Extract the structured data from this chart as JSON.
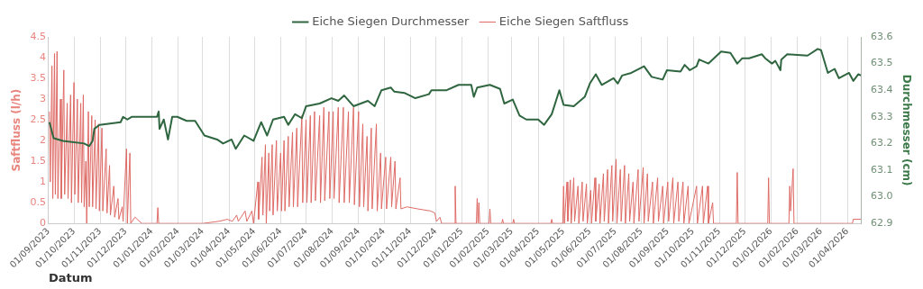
{
  "chart_data": {
    "type": "line",
    "xlabel": "Datum",
    "ylabel": "Saftfluss (l/h)",
    "y2label": "Durchmesser (cm)",
    "legend": "top",
    "grid": "x",
    "marker": "none",
    "xlim": [
      "2023-09-01",
      "2026-04-17"
    ],
    "xticks": [
      {
        "value": "2023-09-01",
        "label": "01/09/2023"
      },
      {
        "value": "2023-10-01",
        "label": "01/10/2023"
      },
      {
        "value": "2023-11-01",
        "label": "01/11/2023"
      },
      {
        "value": "2023-12-01",
        "label": "01/12/2023"
      },
      {
        "value": "2024-01-01",
        "label": "01/01/2024"
      },
      {
        "value": "2024-02-01",
        "label": "01/02/2024"
      },
      {
        "value": "2024-03-01",
        "label": "01/03/2024"
      },
      {
        "value": "2024-04-01",
        "label": "01/04/2024"
      },
      {
        "value": "2024-05-01",
        "label": "01/05/2024"
      },
      {
        "value": "2024-06-01",
        "label": "01/06/2024"
      },
      {
        "value": "2024-07-01",
        "label": "01/07/2024"
      },
      {
        "value": "2024-08-01",
        "label": "01/08/2024"
      },
      {
        "value": "2024-09-01",
        "label": "01/09/2024"
      },
      {
        "value": "2024-10-01",
        "label": "01/10/2024"
      },
      {
        "value": "2024-11-01",
        "label": "01/11/2024"
      },
      {
        "value": "2024-12-01",
        "label": "01/12/2024"
      },
      {
        "value": "2025-01-01",
        "label": "01/01/2025"
      },
      {
        "value": "2025-02-01",
        "label": "01/02/2025"
      },
      {
        "value": "2025-03-01",
        "label": "01/03/2025"
      },
      {
        "value": "2025-04-01",
        "label": "01/04/2025"
      },
      {
        "value": "2025-05-01",
        "label": "01/05/2025"
      },
      {
        "value": "2025-06-01",
        "label": "01/06/2025"
      },
      {
        "value": "2025-07-01",
        "label": "01/07/2025"
      },
      {
        "value": "2025-08-01",
        "label": "01/08/2025"
      },
      {
        "value": "2025-09-01",
        "label": "01/09/2025"
      },
      {
        "value": "2025-10-01",
        "label": "01/10/2025"
      },
      {
        "value": "2025-11-01",
        "label": "01/11/2025"
      },
      {
        "value": "2025-12-01",
        "label": "01/12/2025"
      },
      {
        "value": "2026-01-01",
        "label": "01/01/2026"
      },
      {
        "value": "2026-02-01",
        "label": "01/02/2026"
      },
      {
        "value": "2026-03-01",
        "label": "01/03/2026"
      },
      {
        "value": "2026-04-01",
        "label": "01/04/2026"
      }
    ],
    "ylim": [
      0,
      4.5
    ],
    "yticks": [
      0,
      0.5,
      1,
      1.5,
      2,
      2.5,
      3,
      3.5,
      4,
      4.5
    ],
    "y2lim": [
      62.9,
      63.6
    ],
    "y2ticks": [
      {
        "value": 62.9,
        "label": "62.9"
      },
      {
        "value": 63,
        "label": "63.0"
      },
      {
        "value": 63.1,
        "label": "63.1"
      },
      {
        "value": 63.2,
        "label": "63.2"
      },
      {
        "value": 63.3,
        "label": "63.3"
      },
      {
        "value": 63.4,
        "label": "63.4"
      },
      {
        "value": 63.5,
        "label": "63.5"
      },
      {
        "value": 63.6,
        "label": "63.6"
      }
    ],
    "series": [
      {
        "name": "Eiche Siegen Saftfluss",
        "color": "#de6b66",
        "x": [
          "2023-09-02",
          "2023-09-03",
          "2023-09-05",
          "2023-09-06",
          "2023-09-08",
          "2023-09-09",
          "2023-09-11",
          "2023-09-12",
          "2023-09-15",
          "2023-09-16",
          "2023-09-19",
          "2023-09-20",
          "2023-09-23",
          "2023-09-24",
          "2023-09-27",
          "2023-09-28",
          "2023-10-01",
          "2023-10-02",
          "2023-10-05",
          "2023-10-06",
          "2023-10-09",
          "2023-10-10",
          "2023-10-12",
          "2023-10-13",
          "2023-10-15",
          "2023-10-16",
          "2023-10-18",
          "2023-10-19",
          "2023-10-22",
          "2023-10-23",
          "2023-10-26",
          "2023-10-27",
          "2023-10-30",
          "2023-10-31",
          "2023-11-03",
          "2023-11-04",
          "2023-11-08",
          "2023-11-09",
          "2023-11-12",
          "2023-11-13",
          "2023-11-17",
          "2023-11-18",
          "2023-11-22",
          "2023-11-23",
          "2023-11-27",
          "2023-11-28",
          "2023-12-02",
          "2023-12-03",
          "2023-12-06",
          "2023-12-07",
          "2023-12-12",
          "2023-12-20",
          "2024-01-07",
          "2024-01-08",
          "2024-01-09",
          "2024-03-01",
          "2024-03-20",
          "2024-03-30",
          "2024-04-05",
          "2024-04-10",
          "2024-04-12",
          "2024-04-20",
          "2024-04-22",
          "2024-04-28",
          "2024-04-30",
          "2024-05-05",
          "2024-05-06",
          "2024-05-10",
          "2024-05-11",
          "2024-05-14",
          "2024-05-15",
          "2024-05-18",
          "2024-05-19",
          "2024-05-22",
          "2024-05-23",
          "2024-05-27",
          "2024-05-28",
          "2024-06-01",
          "2024-06-02",
          "2024-06-05",
          "2024-06-06",
          "2024-06-10",
          "2024-06-11",
          "2024-06-15",
          "2024-06-16",
          "2024-06-20",
          "2024-06-21",
          "2024-06-26",
          "2024-06-27",
          "2024-07-01",
          "2024-07-02",
          "2024-07-06",
          "2024-07-07",
          "2024-07-11",
          "2024-07-12",
          "2024-07-17",
          "2024-07-18",
          "2024-07-22",
          "2024-07-23",
          "2024-07-28",
          "2024-07-29",
          "2024-08-02",
          "2024-08-03",
          "2024-08-08",
          "2024-08-09",
          "2024-08-14",
          "2024-08-15",
          "2024-08-20",
          "2024-08-21",
          "2024-08-26",
          "2024-08-27",
          "2024-09-01",
          "2024-09-02",
          "2024-09-06",
          "2024-09-07",
          "2024-09-11",
          "2024-09-12",
          "2024-09-16",
          "2024-09-17",
          "2024-09-22",
          "2024-09-23",
          "2024-09-27",
          "2024-09-28",
          "2024-10-03",
          "2024-10-04",
          "2024-10-09",
          "2024-10-10",
          "2024-10-14",
          "2024-10-15",
          "2024-10-20",
          "2024-10-21",
          "2024-10-28",
          "2024-11-10",
          "2024-11-25",
          "2024-11-30",
          "2024-12-02",
          "2024-12-06",
          "2024-12-08",
          "2024-12-23",
          "2024-12-24",
          "2024-12-25",
          "2025-01-18",
          "2025-01-19",
          "2025-01-20",
          "2025-01-21",
          "2025-01-22",
          "2025-02-02",
          "2025-02-03",
          "2025-02-04",
          "2025-02-17",
          "2025-02-18",
          "2025-02-19",
          "2025-03-02",
          "2025-03-03",
          "2025-03-04",
          "2025-04-16",
          "2025-04-17",
          "2025-04-18",
          "2025-04-30",
          "2025-05-01",
          "2025-05-02",
          "2025-05-05",
          "2025-05-06",
          "2025-05-09",
          "2025-05-10",
          "2025-05-13",
          "2025-05-14",
          "2025-05-18",
          "2025-05-19",
          "2025-05-23",
          "2025-05-24",
          "2025-05-28",
          "2025-05-29",
          "2025-06-02",
          "2025-06-03",
          "2025-06-07",
          "2025-06-08",
          "2025-06-12",
          "2025-06-13",
          "2025-06-17",
          "2025-06-18",
          "2025-06-22",
          "2025-06-23",
          "2025-06-27",
          "2025-06-28",
          "2025-07-02",
          "2025-07-03",
          "2025-07-07",
          "2025-07-08",
          "2025-07-12",
          "2025-07-13",
          "2025-07-17",
          "2025-07-18",
          "2025-07-22",
          "2025-07-23",
          "2025-07-28",
          "2025-07-29",
          "2025-08-03",
          "2025-08-04",
          "2025-08-08",
          "2025-08-09",
          "2025-08-14",
          "2025-08-15",
          "2025-08-20",
          "2025-08-21",
          "2025-08-26",
          "2025-08-27",
          "2025-09-01",
          "2025-09-02",
          "2025-09-07",
          "2025-09-08",
          "2025-09-13",
          "2025-09-14",
          "2025-09-19",
          "2025-09-20",
          "2025-09-25",
          "2025-09-26",
          "2025-10-05",
          "2025-10-06",
          "2025-10-12",
          "2025-10-13",
          "2025-10-18",
          "2025-10-19",
          "2025-10-24",
          "2025-10-25",
          "2025-11-21",
          "2025-11-22",
          "2025-11-23",
          "2025-12-28",
          "2025-12-29",
          "2025-12-30",
          "2026-01-22",
          "2026-01-23",
          "2026-01-24",
          "2026-01-27",
          "2026-01-28",
          "2026-04-07",
          "2026-04-08",
          "2026-04-17"
        ],
        "values": [
          2.7,
          1.0,
          3.8,
          0.6,
          4.1,
          0.7,
          4.15,
          0.6,
          3.0,
          0.6,
          3.7,
          0.7,
          2.9,
          0.6,
          3.1,
          0.5,
          3.4,
          0.7,
          3.0,
          0.5,
          2.9,
          0.5,
          3.1,
          0.4,
          1.5,
          0,
          2.7,
          0.4,
          2.6,
          0.4,
          2.5,
          0.35,
          2.4,
          0.3,
          2.3,
          0.3,
          1.8,
          0.25,
          1.4,
          0.2,
          0.9,
          0.15,
          0.6,
          0.1,
          0.4,
          0.05,
          1.8,
          0,
          1.7,
          0,
          0.15,
          0,
          0,
          0.38,
          0,
          0,
          0.05,
          0.1,
          0.05,
          0.2,
          0.05,
          0.3,
          0.05,
          0.3,
          0,
          1.0,
          0.1,
          1.6,
          0.2,
          1.9,
          0,
          1.7,
          0.3,
          1.9,
          0.2,
          2.0,
          0.3,
          1.7,
          0.3,
          2.0,
          0.3,
          2.1,
          0.4,
          2.2,
          0.4,
          2.3,
          0.4,
          2.6,
          0.5,
          2.5,
          0.5,
          2.6,
          0.5,
          2.7,
          0.55,
          2.6,
          0.5,
          2.8,
          0.55,
          2.7,
          0.6,
          2.7,
          0.6,
          2.8,
          0.5,
          2.8,
          0.5,
          2.7,
          0.5,
          2.8,
          0.45,
          2.7,
          0.4,
          2.4,
          0.4,
          2.1,
          0.3,
          2.3,
          0.35,
          2.4,
          0.3,
          1.7,
          0.35,
          1.6,
          0.35,
          1.6,
          0.4,
          1.5,
          0.35,
          1.1,
          0.35,
          0.4,
          0.35,
          0.3,
          0.25,
          0.05,
          0.15,
          0,
          0,
          0.9,
          0,
          0,
          0.6,
          0,
          0.5,
          0,
          0,
          0.35,
          0,
          0,
          0.1,
          0,
          0,
          0.1,
          0,
          0,
          0.1,
          0,
          0,
          0.9,
          0,
          1.0,
          0.05,
          1.05,
          0,
          1.1,
          0.05,
          0.9,
          0,
          1.0,
          0.05,
          0.95,
          0,
          0.8,
          0,
          1.1,
          0.05,
          0.95,
          0,
          1.2,
          0.05,
          1.3,
          0,
          1.4,
          0.05,
          1.55,
          0,
          1.3,
          0.05,
          1.4,
          0,
          1.2,
          0.05,
          1.0,
          0,
          1.3,
          0.05,
          1.35,
          0,
          1.2,
          0.05,
          1.0,
          0,
          1.1,
          0.05,
          0.9,
          0,
          1.0,
          0.05,
          1.1,
          0,
          1.0,
          0.05,
          1.0,
          0,
          0.9,
          0,
          0.9,
          0,
          0.9,
          0,
          0.9,
          0,
          0.5,
          0,
          0,
          1.23,
          0,
          0,
          1.1,
          0,
          0,
          0.9,
          0.3,
          1.32,
          0,
          0,
          0.1,
          0.1
        ]
      },
      {
        "name": "Eiche Siegen Durchmesser",
        "color": "#2f6640",
        "axis": "y2",
        "x": [
          "2023-09-02",
          "2023-09-07",
          "2023-09-18",
          "2023-10-13",
          "2023-10-19",
          "2023-10-23",
          "2023-10-25",
          "2023-10-31",
          "2023-11-25",
          "2023-11-28",
          "2023-12-03",
          "2023-12-08",
          "2024-01-07",
          "2024-01-09",
          "2024-01-10",
          "2024-01-15",
          "2024-01-20",
          "2024-01-25",
          "2024-01-31",
          "2024-02-11",
          "2024-02-21",
          "2024-03-03",
          "2024-03-18",
          "2024-03-25",
          "2024-04-04",
          "2024-04-09",
          "2024-04-19",
          "2024-04-30",
          "2024-05-09",
          "2024-05-16",
          "2024-05-23",
          "2024-06-05",
          "2024-06-10",
          "2024-06-18",
          "2024-06-26",
          "2024-07-01",
          "2024-07-17",
          "2024-07-31",
          "2024-08-08",
          "2024-08-15",
          "2024-08-26",
          "2024-09-12",
          "2024-09-20",
          "2024-09-28",
          "2024-10-09",
          "2024-10-13",
          "2024-10-25",
          "2024-11-07",
          "2024-11-23",
          "2024-11-26",
          "2024-12-14",
          "2024-12-28",
          "2025-01-12",
          "2025-01-15",
          "2025-01-19",
          "2025-02-03",
          "2025-02-15",
          "2025-02-20",
          "2025-03-02",
          "2025-03-10",
          "2025-03-18",
          "2025-04-01",
          "2025-04-08",
          "2025-04-17",
          "2025-04-26",
          "2025-05-01",
          "2025-05-13",
          "2025-05-26",
          "2025-06-01",
          "2025-06-08",
          "2025-06-15",
          "2025-06-29",
          "2025-07-04",
          "2025-07-09",
          "2025-07-20",
          "2025-08-04",
          "2025-08-13",
          "2025-08-26",
          "2025-08-31",
          "2025-09-16",
          "2025-09-21",
          "2025-09-27",
          "2025-10-05",
          "2025-10-08",
          "2025-10-19",
          "2025-11-03",
          "2025-11-14",
          "2025-11-22",
          "2025-11-28",
          "2025-12-06",
          "2025-12-21",
          "2025-12-25",
          "2026-01-02",
          "2026-01-06",
          "2026-01-12",
          "2026-01-13",
          "2026-01-20",
          "2026-02-13",
          "2026-02-25",
          "2026-03-01",
          "2026-03-09",
          "2026-03-17",
          "2026-03-22",
          "2026-04-03",
          "2026-04-08",
          "2026-04-14",
          "2026-04-17"
        ],
        "values": [
          63.28,
          63.22,
          63.21,
          63.2,
          63.19,
          63.21,
          63.255,
          63.27,
          63.28,
          63.3,
          63.29,
          63.3,
          63.3,
          63.32,
          63.255,
          63.29,
          63.215,
          63.3,
          63.3,
          63.285,
          63.285,
          63.23,
          63.215,
          63.2,
          63.215,
          63.18,
          63.23,
          63.21,
          63.28,
          63.23,
          63.29,
          63.3,
          63.27,
          63.31,
          63.295,
          63.34,
          63.35,
          63.37,
          63.36,
          63.38,
          63.34,
          63.36,
          63.34,
          63.4,
          63.41,
          63.395,
          63.39,
          63.37,
          63.385,
          63.4,
          63.4,
          63.42,
          63.42,
          63.375,
          63.41,
          63.42,
          63.405,
          63.35,
          63.365,
          63.305,
          63.29,
          63.29,
          63.27,
          63.31,
          63.4,
          63.345,
          63.34,
          63.375,
          63.425,
          63.46,
          63.42,
          63.445,
          63.425,
          63.455,
          63.465,
          63.49,
          63.45,
          63.44,
          63.475,
          63.47,
          63.495,
          63.475,
          63.49,
          63.515,
          63.5,
          63.545,
          63.54,
          63.5,
          63.52,
          63.52,
          63.535,
          63.52,
          63.5,
          63.51,
          63.475,
          63.515,
          63.535,
          63.53,
          63.555,
          63.55,
          63.465,
          63.48,
          63.445,
          63.465,
          63.435,
          63.46,
          63.455
        ]
      }
    ]
  }
}
